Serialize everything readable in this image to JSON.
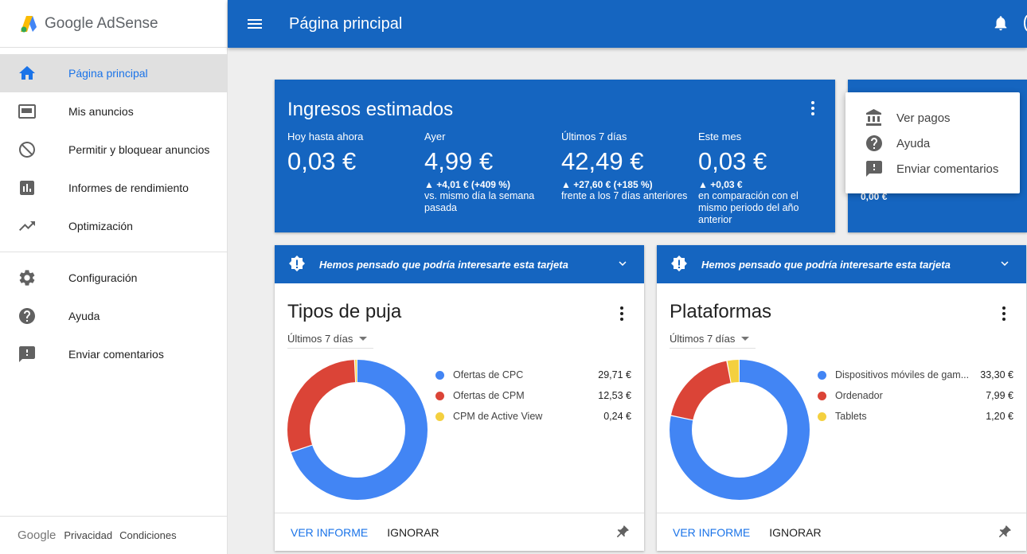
{
  "brand": {
    "name": "Google AdSense"
  },
  "sidebar": {
    "items": [
      {
        "label": "Página principal",
        "icon": "home-icon"
      },
      {
        "label": "Mis anuncios",
        "icon": "ad-unit-icon"
      },
      {
        "label": "Permitir y bloquear anuncios",
        "icon": "block-icon"
      },
      {
        "label": "Informes de rendimiento",
        "icon": "bar-chart-icon"
      },
      {
        "label": "Optimización",
        "icon": "trending-up-icon"
      },
      {
        "label": "Configuración",
        "icon": "gear-icon"
      },
      {
        "label": "Ayuda",
        "icon": "help-icon"
      },
      {
        "label": "Enviar comentarios",
        "icon": "feedback-icon"
      }
    ],
    "footer": {
      "google": "Google",
      "privacy": "Privacidad",
      "terms": "Condiciones"
    }
  },
  "header": {
    "title": "Página principal"
  },
  "earnings": {
    "title": "Ingresos estimados",
    "stats": [
      {
        "label": "Hoy hasta ahora",
        "value": "0,03 €",
        "change": "",
        "desc": ""
      },
      {
        "label": "Ayer",
        "value": "4,99 €",
        "change": "▲ +4,01 € (+409 %)",
        "desc": "vs. mismo día la semana pasada"
      },
      {
        "label": "Últimos 7 días",
        "value": "42,49 €",
        "change": "▲ +27,60 € (+185 %)",
        "desc": "frente a los 7 días anteriores"
      },
      {
        "label": "Este mes",
        "value": "0,03 €",
        "change": "▲ +0,03 €",
        "desc": "en comparación con el mismo periodo del año anterior"
      }
    ],
    "partial_value": "0,00 €"
  },
  "popup_menu": {
    "items": [
      {
        "label": "Ver pagos",
        "icon": "bank-icon"
      },
      {
        "label": "Ayuda",
        "icon": "help-icon"
      },
      {
        "label": "Enviar comentarios",
        "icon": "feedback-icon"
      }
    ]
  },
  "cards": [
    {
      "banner": "Hemos pensado que podría interesarte esta tarjeta",
      "title": "Tipos de puja",
      "period": "Últimos 7 días",
      "report_label": "VER INFORME",
      "ignore_label": "IGNORAR",
      "legend": [
        {
          "name": "Ofertas de CPC",
          "amount": "29,71 €"
        },
        {
          "name": "Ofertas de CPM",
          "amount": "12,53 €"
        },
        {
          "name": "CPM de Active View",
          "amount": "0,24 €"
        }
      ]
    },
    {
      "banner": "Hemos pensado que podría interesarte esta tarjeta",
      "title": "Plataformas",
      "period": "Últimos 7 días",
      "report_label": "VER INFORME",
      "ignore_label": "IGNORAR",
      "legend": [
        {
          "name": "Dispositivos móviles de gam...",
          "amount": "33,30 €"
        },
        {
          "name": "Ordenador",
          "amount": "7,99 €"
        },
        {
          "name": "Tablets",
          "amount": "1,20 €"
        }
      ]
    }
  ],
  "chart_data": [
    {
      "type": "pie",
      "title": "Tipos de puja",
      "categories": [
        "Ofertas de CPC",
        "Ofertas de CPM",
        "CPM de Active View"
      ],
      "values": [
        29.71,
        12.53,
        0.24
      ],
      "colors": [
        "#4285f4",
        "#db4437",
        "#f4d03f"
      ]
    },
    {
      "type": "pie",
      "title": "Plataformas",
      "categories": [
        "Dispositivos móviles de gam...",
        "Ordenador",
        "Tablets"
      ],
      "values": [
        33.3,
        7.99,
        1.2
      ],
      "colors": [
        "#4285f4",
        "#db4437",
        "#f4d03f"
      ]
    }
  ],
  "colors": {
    "primary": "#1565c0",
    "accent": "#1a73e8",
    "series_blue": "#4285f4",
    "series_red": "#db4437",
    "series_yellow": "#f4d03f"
  }
}
